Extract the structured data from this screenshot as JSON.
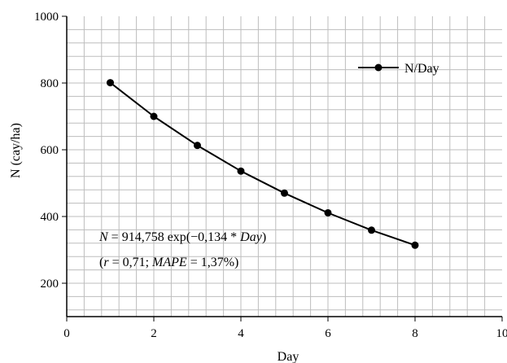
{
  "chart_data": {
    "type": "line",
    "title": "",
    "xlabel": "Day",
    "ylabel": "N (cay/ha)",
    "xlim": [
      0,
      10
    ],
    "ylim": [
      100,
      1000
    ],
    "x_ticks": [
      0,
      2,
      4,
      6,
      8,
      10
    ],
    "y_ticks": [
      200,
      400,
      600,
      800,
      1000
    ],
    "x_tick_labels": [
      "0",
      "2",
      "4",
      "6",
      "8",
      "10"
    ],
    "y_tick_labels": [
      "200",
      "400",
      "600",
      "800",
      "1000"
    ],
    "grid": true,
    "legend": {
      "position": "top-right",
      "entries": [
        "N/Day"
      ]
    },
    "series": [
      {
        "name": "N/Day",
        "color": "#000000",
        "marker": "circle",
        "x": [
          1,
          2,
          3,
          4,
          5,
          6,
          7,
          8
        ],
        "y": [
          801,
          700,
          613,
          536,
          470,
          411,
          359,
          314
        ]
      }
    ],
    "annotations": {
      "line1": {
        "lhs_var": "N",
        "eq": " = 914,758 exp(−0,134 * ",
        "var": "Day",
        "close": ")"
      },
      "line2": {
        "open": "(",
        "r_var": "r",
        "r_val": " = 0,71; ",
        "mape_var": "MAPE",
        "mape_val": " = 1,37%)"
      }
    }
  }
}
